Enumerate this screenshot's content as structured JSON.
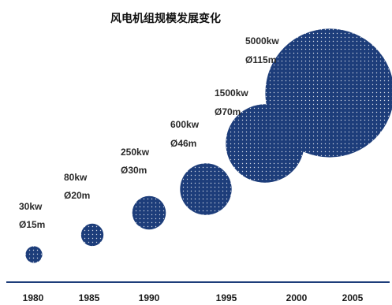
{
  "chart_data": {
    "type": "scatter",
    "title": "风电机组规模发展变化",
    "xlabel": "",
    "ylabel": "",
    "x_ticks": [
      "1980",
      "1985",
      "1990",
      "1995",
      "2000",
      "2005"
    ],
    "points": [
      {
        "x": "1980",
        "power": "30kw",
        "diameter": "Ø15m",
        "diameter_m": 15
      },
      {
        "x": "1985",
        "power": "80kw",
        "diameter": "Ø20m",
        "diameter_m": 20
      },
      {
        "x": "1990",
        "power": "250kw",
        "diameter": "Ø30m",
        "diameter_m": 30
      },
      {
        "x": "1995",
        "power": "600kw",
        "diameter": "Ø46m",
        "diameter_m": 46
      },
      {
        "x": "2000",
        "power": "1500kw",
        "diameter": "Ø70m",
        "diameter_m": 70
      },
      {
        "x": "2005",
        "power": "5000kw",
        "diameter": "Ø115m",
        "diameter_m": 115
      }
    ],
    "colors": {
      "bubble": "#1d3d7a",
      "dot": "#ffffff",
      "axis": "#1d3d7a"
    },
    "grid": false,
    "legend": "none"
  }
}
